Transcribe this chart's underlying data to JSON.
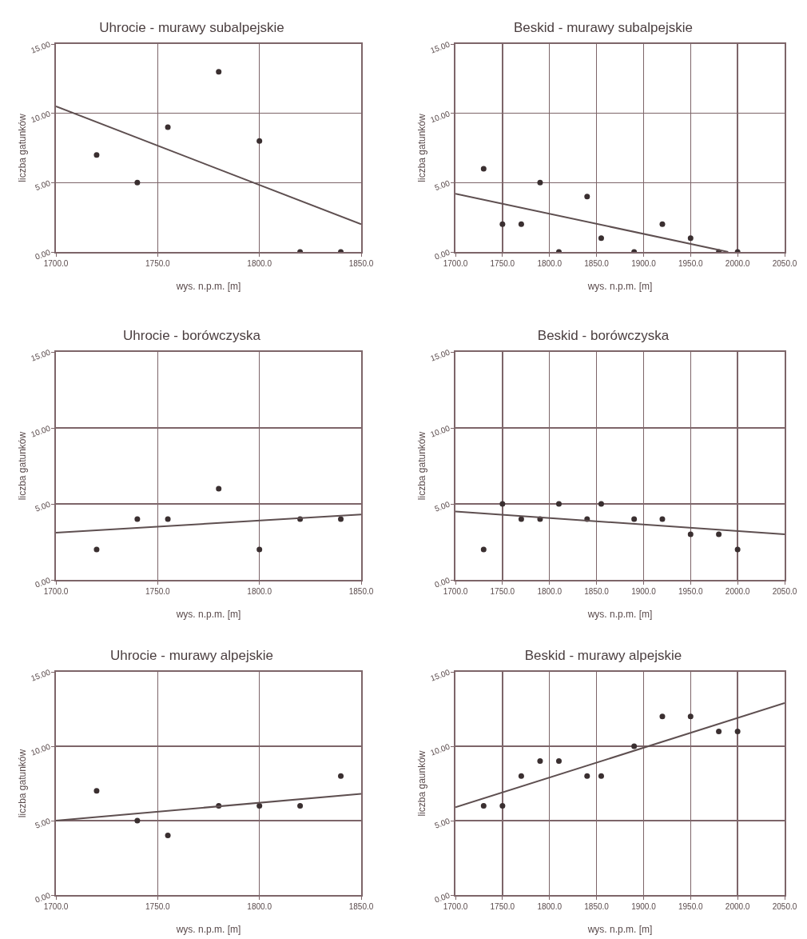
{
  "chart_data": [
    {
      "type": "scatter",
      "title": "Uhrocie - murawy subalpejskie",
      "xlabel": "wys. n.p.m. [m]",
      "ylabel": "liczba gatunków",
      "xlim": [
        1700,
        1850
      ],
      "ylim": [
        0,
        15
      ],
      "xticks": [
        {
          "value": 1700,
          "label": "1700.0"
        },
        {
          "value": 1750,
          "label": "1750.0"
        },
        {
          "value": 1800,
          "label": "1800.0"
        },
        {
          "value": 1850,
          "label": "1850.0"
        }
      ],
      "yticks": [
        {
          "value": 0,
          "label": "0.00"
        },
        {
          "value": 5,
          "label": "5.00"
        },
        {
          "value": 10,
          "label": "10.00"
        },
        {
          "value": 15,
          "label": "15.00"
        }
      ],
      "grid": true,
      "series": [
        {
          "type": "scatter",
          "marker": "circle",
          "color": "#3a2f30",
          "x": [
            1720,
            1740,
            1755,
            1780,
            1800,
            1820,
            1840
          ],
          "values": [
            7,
            5,
            9,
            13,
            8,
            0,
            0
          ]
        },
        {
          "type": "line",
          "color": "#5e4f50",
          "x": [
            1700,
            1850
          ],
          "values": [
            10.5,
            2
          ]
        }
      ]
    },
    {
      "type": "scatter",
      "title": "Beskid - murawy subalpejskie",
      "xlabel": "wys. n.p.m. [m]",
      "ylabel": "liczba gatunków",
      "xlim": [
        1700,
        2050
      ],
      "ylim": [
        0,
        15
      ],
      "xticks": [
        {
          "value": 1700,
          "label": "1700.0"
        },
        {
          "value": 1750,
          "label": "1750.0"
        },
        {
          "value": 1800,
          "label": "1800.0"
        },
        {
          "value": 1850,
          "label": "1850.0"
        },
        {
          "value": 1900,
          "label": "1900.0"
        },
        {
          "value": 1950,
          "label": "1950.0"
        },
        {
          "value": 2000,
          "label": "2000.0"
        },
        {
          "value": 2050,
          "label": "2050.0"
        }
      ],
      "yticks": [
        {
          "value": 0,
          "label": "0.00"
        },
        {
          "value": 5,
          "label": "5.00"
        },
        {
          "value": 10,
          "label": "10.00"
        },
        {
          "value": 15,
          "label": "15.00"
        }
      ],
      "grid": true,
      "series": [
        {
          "type": "scatter",
          "marker": "circle",
          "color": "#3a2f30",
          "x": [
            1730,
            1750,
            1770,
            1790,
            1810,
            1840,
            1855,
            1890,
            1920,
            1950,
            1980,
            2000
          ],
          "values": [
            6,
            2,
            2,
            5,
            0,
            4,
            1,
            0,
            2,
            1,
            0,
            0
          ]
        },
        {
          "type": "line",
          "color": "#5e4f50",
          "x": [
            1700,
            1990
          ],
          "values": [
            4.2,
            0
          ]
        }
      ]
    },
    {
      "type": "scatter",
      "title": "Uhrocie - borówczyska",
      "xlabel": "wys. n.p.m. [m]",
      "ylabel": "liczba gatunków",
      "xlim": [
        1700,
        1850
      ],
      "ylim": [
        0,
        15
      ],
      "xticks": [
        {
          "value": 1700,
          "label": "1700.0"
        },
        {
          "value": 1750,
          "label": "1750.0"
        },
        {
          "value": 1800,
          "label": "1800.0"
        },
        {
          "value": 1850,
          "label": "1850.0"
        }
      ],
      "yticks": [
        {
          "value": 0,
          "label": "0.00"
        },
        {
          "value": 5,
          "label": "5.00"
        },
        {
          "value": 10,
          "label": "10.00"
        },
        {
          "value": 15,
          "label": "15.00"
        }
      ],
      "grid": true,
      "series": [
        {
          "type": "scatter",
          "marker": "circle",
          "color": "#3a2f30",
          "x": [
            1720,
            1740,
            1755,
            1780,
            1800,
            1820,
            1840
          ],
          "values": [
            2,
            4,
            4,
            6,
            2,
            4,
            4
          ]
        },
        {
          "type": "line",
          "color": "#5e4f50",
          "x": [
            1700,
            1850
          ],
          "values": [
            3.1,
            4.3
          ]
        }
      ]
    },
    {
      "type": "scatter",
      "title": "Beskid - borówczyska",
      "xlabel": "wys. n.p.m. [m]",
      "ylabel": "liczba gatunków",
      "xlim": [
        1700,
        2050
      ],
      "ylim": [
        0,
        15
      ],
      "xticks": [
        {
          "value": 1700,
          "label": "1700.0"
        },
        {
          "value": 1750,
          "label": "1750.0"
        },
        {
          "value": 1800,
          "label": "1800.0"
        },
        {
          "value": 1850,
          "label": "1850.0"
        },
        {
          "value": 1900,
          "label": "1900.0"
        },
        {
          "value": 1950,
          "label": "1950.0"
        },
        {
          "value": 2000,
          "label": "2000.0"
        },
        {
          "value": 2050,
          "label": "2050.0"
        }
      ],
      "yticks": [
        {
          "value": 0,
          "label": "0.00"
        },
        {
          "value": 5,
          "label": "5.00"
        },
        {
          "value": 10,
          "label": "10.00"
        },
        {
          "value": 15,
          "label": "15.00"
        }
      ],
      "grid": true,
      "series": [
        {
          "type": "scatter",
          "marker": "circle",
          "color": "#3a2f30",
          "x": [
            1730,
            1750,
            1770,
            1790,
            1810,
            1840,
            1855,
            1890,
            1920,
            1950,
            1980,
            2000
          ],
          "values": [
            2,
            5,
            4,
            4,
            5,
            4,
            5,
            4,
            4,
            3,
            3,
            2
          ]
        },
        {
          "type": "line",
          "color": "#5e4f50",
          "x": [
            1700,
            2050
          ],
          "values": [
            4.5,
            3.0
          ]
        }
      ]
    },
    {
      "type": "scatter",
      "title": "Uhrocie - murawy alpejskie",
      "xlabel": "wys. n.p.m. [m]",
      "ylabel": "liczba gatunków",
      "xlim": [
        1700,
        1850
      ],
      "ylim": [
        0,
        15
      ],
      "xticks": [
        {
          "value": 1700,
          "label": "1700.0"
        },
        {
          "value": 1750,
          "label": "1750.0"
        },
        {
          "value": 1800,
          "label": "1800.0"
        },
        {
          "value": 1850,
          "label": "1850.0"
        }
      ],
      "yticks": [
        {
          "value": 0,
          "label": "0.00"
        },
        {
          "value": 5,
          "label": "5.00"
        },
        {
          "value": 10,
          "label": "10.00"
        },
        {
          "value": 15,
          "label": "15.00"
        }
      ],
      "grid": true,
      "series": [
        {
          "type": "scatter",
          "marker": "circle",
          "color": "#3a2f30",
          "x": [
            1720,
            1740,
            1755,
            1780,
            1800,
            1820,
            1840
          ],
          "values": [
            7,
            5,
            4,
            6,
            6,
            6,
            8
          ]
        },
        {
          "type": "line",
          "color": "#5e4f50",
          "x": [
            1700,
            1850
          ],
          "values": [
            5,
            6.8
          ]
        }
      ]
    },
    {
      "type": "scatter",
      "title": "Beskid - murawy alpejskie",
      "xlabel": "wys. n.p.m. [m]",
      "ylabel": "liczba gaunków",
      "xlim": [
        1700,
        2050
      ],
      "ylim": [
        0,
        15
      ],
      "xticks": [
        {
          "value": 1700,
          "label": "1700.0"
        },
        {
          "value": 1750,
          "label": "1750.0"
        },
        {
          "value": 1800,
          "label": "1800.0"
        },
        {
          "value": 1850,
          "label": "1850.0"
        },
        {
          "value": 1900,
          "label": "1900.0"
        },
        {
          "value": 1950,
          "label": "1950.0"
        },
        {
          "value": 2000,
          "label": "2000.0"
        },
        {
          "value": 2050,
          "label": "2050.0"
        }
      ],
      "yticks": [
        {
          "value": 0,
          "label": "0.00"
        },
        {
          "value": 5,
          "label": "5.00"
        },
        {
          "value": 10,
          "label": "10.00"
        },
        {
          "value": 15,
          "label": "15.00"
        }
      ],
      "grid": true,
      "series": [
        {
          "type": "scatter",
          "marker": "circle",
          "color": "#3a2f30",
          "x": [
            1730,
            1750,
            1770,
            1790,
            1810,
            1840,
            1855,
            1890,
            1920,
            1950,
            1980,
            2000
          ],
          "values": [
            6,
            6,
            8,
            9,
            9,
            8,
            8,
            10,
            12,
            12,
            11,
            11
          ]
        },
        {
          "type": "line",
          "color": "#5e4f50",
          "x": [
            1700,
            2050
          ],
          "values": [
            5.9,
            12.9
          ]
        }
      ]
    }
  ]
}
